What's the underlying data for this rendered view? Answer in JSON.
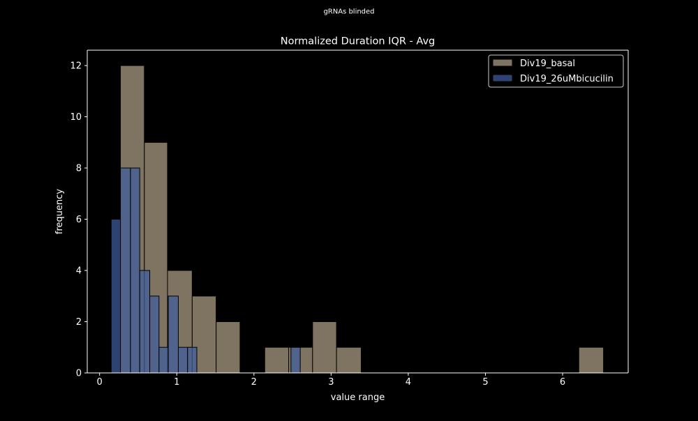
{
  "suptitle": "gRNAs blinded",
  "colors": {
    "background": "#000000",
    "foreground": "#ffffff",
    "bar_edge": "#000000"
  },
  "chart_data": {
    "type": "bar",
    "title": "Normalized Duration IQR - Avg",
    "xlabel": "value range",
    "ylabel": "frequency",
    "xlim": [
      -0.16,
      6.85
    ],
    "ylim": [
      0,
      12.6
    ],
    "xticks": [
      0,
      1,
      2,
      3,
      4,
      5,
      6
    ],
    "yticks": [
      0,
      2,
      4,
      6,
      8,
      10,
      12
    ],
    "grid": false,
    "legend_position": "upper right",
    "series": [
      {
        "name": "Div19_basal",
        "color": "#b09f87",
        "opacity": 0.72,
        "bins": [
          {
            "x0": 0.27,
            "x1": 0.58,
            "count": 12
          },
          {
            "x0": 0.58,
            "x1": 0.88,
            "count": 9
          },
          {
            "x0": 0.88,
            "x1": 1.2,
            "count": 4
          },
          {
            "x0": 1.2,
            "x1": 1.51,
            "count": 3
          },
          {
            "x0": 1.51,
            "x1": 1.82,
            "count": 2
          },
          {
            "x0": 1.82,
            "x1": 2.14,
            "count": 0
          },
          {
            "x0": 2.14,
            "x1": 2.45,
            "count": 1
          },
          {
            "x0": 2.45,
            "x1": 2.76,
            "count": 1
          },
          {
            "x0": 2.76,
            "x1": 3.07,
            "count": 2
          },
          {
            "x0": 3.07,
            "x1": 3.39,
            "count": 1
          },
          {
            "x0": 6.21,
            "x1": 6.53,
            "count": 1
          }
        ]
      },
      {
        "name": "Div19_26uMbicucilin",
        "color": "#3f5d9e",
        "opacity": 0.72,
        "bins": [
          {
            "x0": 0.15,
            "x1": 0.27,
            "count": 6
          },
          {
            "x0": 0.27,
            "x1": 0.4,
            "count": 8
          },
          {
            "x0": 0.4,
            "x1": 0.52,
            "count": 8
          },
          {
            "x0": 0.52,
            "x1": 0.65,
            "count": 4
          },
          {
            "x0": 0.65,
            "x1": 0.77,
            "count": 3
          },
          {
            "x0": 0.77,
            "x1": 0.89,
            "count": 1
          },
          {
            "x0": 0.89,
            "x1": 1.02,
            "count": 3
          },
          {
            "x0": 1.02,
            "x1": 1.14,
            "count": 1
          },
          {
            "x0": 1.14,
            "x1": 1.26,
            "count": 1
          },
          {
            "x0": 2.48,
            "x1": 2.6,
            "count": 1
          }
        ]
      }
    ]
  }
}
